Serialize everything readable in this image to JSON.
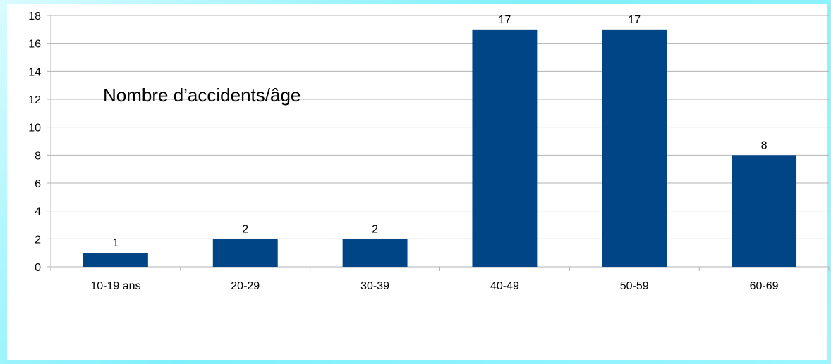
{
  "chart_data": {
    "type": "bar",
    "title": "Nombre d’accidents/âge",
    "xlabel": "",
    "ylabel": "",
    "categories": [
      "10-19 ans",
      "20-29",
      "30-39",
      "40-49",
      "50-59",
      "60-69"
    ],
    "values": [
      1,
      2,
      2,
      17,
      17,
      8
    ],
    "data_labels": [
      "1",
      "2",
      "2",
      "17",
      "17",
      "8"
    ],
    "ylim": [
      0,
      18
    ],
    "yticks": [
      0,
      2,
      4,
      6,
      8,
      10,
      12,
      14,
      16,
      18
    ],
    "grid": true,
    "legend": "none",
    "bar_color": "#004586"
  }
}
